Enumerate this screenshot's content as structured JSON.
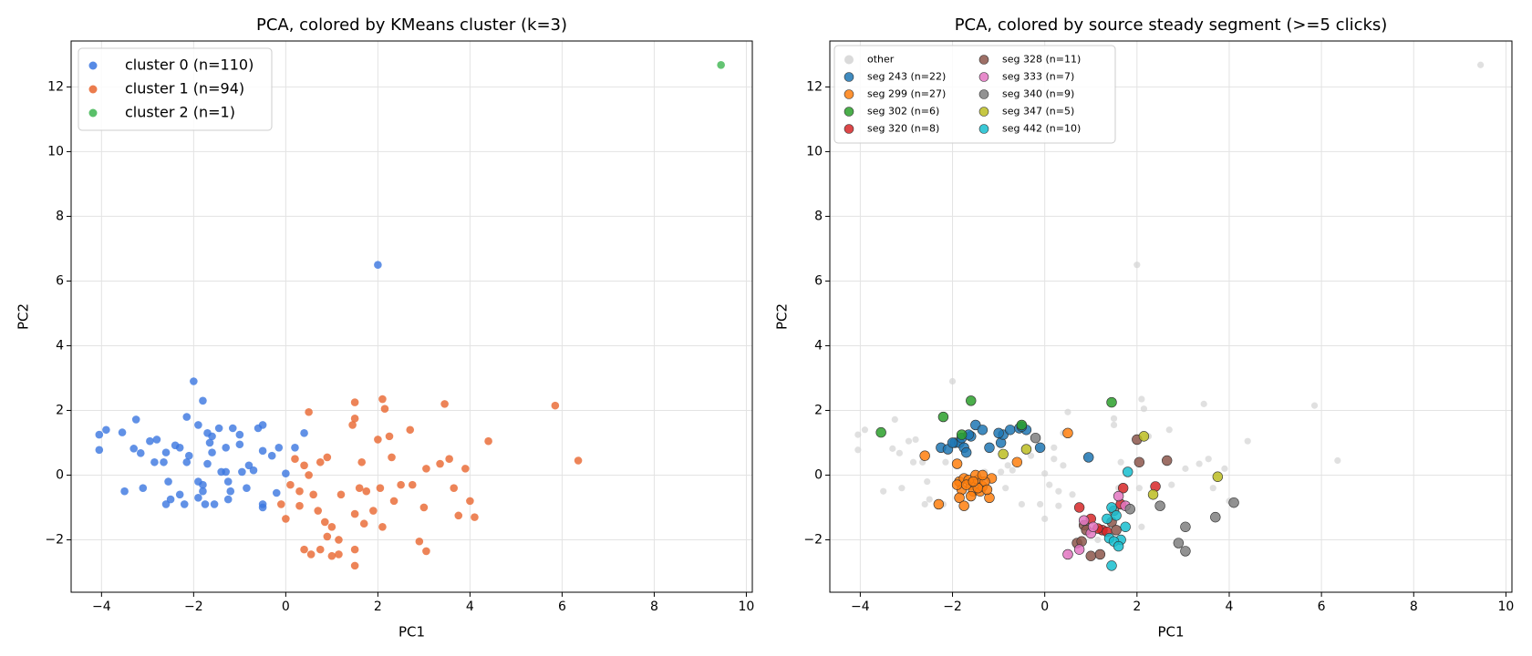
{
  "chart_data": [
    {
      "type": "scatter",
      "title": "PCA, colored by KMeans cluster (k=3)",
      "xlabel": "PC1",
      "ylabel": "PC2",
      "xlim": [
        -4.66,
        10.13
      ],
      "ylim": [
        -3.62,
        13.42
      ],
      "xticks": [
        {
          "value": -4,
          "label": "−4"
        },
        {
          "value": -2,
          "label": "−2"
        },
        0,
        2,
        4,
        6,
        8,
        10
      ],
      "yticks": [
        {
          "value": -2,
          "label": "−2"
        },
        0,
        2,
        4,
        6,
        8,
        10,
        12
      ],
      "grid": true,
      "legend": "upper left",
      "series": [
        {
          "name": "cluster 0 (n=110)",
          "color": "#3a76e0",
          "x": [
            -4.05,
            -3.9,
            -4.05,
            -3.55,
            -3.25,
            -3.3,
            -3.15,
            -2.95,
            -2.8,
            -3.5,
            -3.1,
            -2.85,
            -2.65,
            -2.6,
            -2.4,
            -2.3,
            -2.55,
            -2.3,
            -2.5,
            -2.6,
            -2.2,
            -2.15,
            -2.1,
            -2.0,
            -1.8,
            -2.15,
            -1.9,
            -1.8,
            -1.8,
            -1.9,
            -1.75,
            -1.55,
            -1.7,
            -1.6,
            -1.65,
            -1.7,
            -1.6,
            -1.45,
            -1.3,
            -1.3,
            -1.25,
            -1.2,
            -1.25,
            -1.15,
            -1.0,
            -1.0,
            -0.95,
            -0.85,
            -0.8,
            -0.7,
            -0.6,
            -0.5,
            -0.5,
            -0.5,
            -0.5,
            -0.3,
            -0.2,
            -0.15,
            0.0,
            0.2,
            0.4,
            -1.4,
            -1.9,
            2.0
          ],
          "y": [
            1.25,
            1.4,
            0.78,
            1.32,
            1.72,
            0.82,
            0.68,
            1.05,
            1.1,
            -0.5,
            -0.4,
            0.4,
            0.4,
            0.7,
            0.92,
            0.85,
            -0.2,
            -0.6,
            -0.75,
            -0.9,
            -0.9,
            0.4,
            0.6,
            2.9,
            2.3,
            1.8,
            -0.2,
            -0.3,
            -0.5,
            -0.7,
            -0.9,
            -0.9,
            0.35,
            0.7,
            1.0,
            1.3,
            1.2,
            1.45,
            0.85,
            0.1,
            -0.2,
            -0.5,
            -0.75,
            1.45,
            1.25,
            0.95,
            0.1,
            -0.4,
            0.3,
            0.15,
            1.45,
            1.55,
            0.75,
            -0.9,
            -1.0,
            0.6,
            -0.55,
            0.85,
            0.05,
            0.85,
            1.3,
            0.1,
            1.55,
            6.5
          ]
        },
        {
          "name": "cluster 1 (n=94)",
          "color": "#e8652e",
          "x": [
            0.5,
            0.2,
            0.4,
            0.5,
            0.1,
            0.3,
            -0.1,
            0.0,
            0.3,
            0.6,
            0.7,
            0.75,
            0.9,
            0.85,
            0.9,
            1.0,
            1.15,
            0.4,
            0.55,
            0.75,
            1.0,
            1.15,
            1.5,
            1.5,
            1.45,
            1.5,
            1.5,
            1.65,
            1.6,
            1.75,
            1.5,
            1.7,
            1.9,
            2.0,
            2.1,
            2.15,
            2.25,
            2.05,
            2.1,
            2.35,
            2.5,
            2.7,
            2.75,
            2.9,
            3.05,
            3.05,
            3.35,
            3.45,
            3.55,
            3.65,
            3.75,
            3.9,
            4.0,
            4.1,
            4.4,
            5.85,
            6.35,
            1.2,
            2.3,
            3.0
          ],
          "y": [
            1.95,
            0.5,
            0.3,
            0.0,
            -0.3,
            -0.5,
            -0.9,
            -1.35,
            -0.95,
            -0.6,
            -1.1,
            0.4,
            0.55,
            -1.45,
            -1.9,
            -1.6,
            -2.0,
            -2.3,
            -2.45,
            -2.3,
            -2.5,
            -2.45,
            -2.8,
            -2.3,
            1.55,
            1.75,
            2.25,
            0.4,
            -0.4,
            -0.5,
            -1.2,
            -1.5,
            -1.1,
            1.1,
            2.35,
            2.05,
            1.2,
            -0.4,
            -1.6,
            -0.8,
            -0.3,
            1.4,
            -0.3,
            -2.05,
            -2.35,
            0.2,
            0.35,
            2.2,
            0.5,
            -0.4,
            -1.25,
            0.2,
            -0.8,
            -1.3,
            1.05,
            2.15,
            0.45,
            -0.6,
            0.55,
            -1.0
          ]
        },
        {
          "name": "cluster 2 (n=1)",
          "color": "#3db550",
          "x": [
            9.45
          ],
          "y": [
            12.68
          ]
        }
      ]
    },
    {
      "type": "scatter",
      "title": "PCA, colored by source steady segment (>=5 clicks)",
      "xlabel": "PC1",
      "ylabel": "PC2",
      "xlim": [
        -4.66,
        10.13
      ],
      "ylim": [
        -3.62,
        13.42
      ],
      "xticks": [
        {
          "value": -4,
          "label": "−4"
        },
        {
          "value": -2,
          "label": "−2"
        },
        0,
        2,
        4,
        6,
        8,
        10
      ],
      "yticks": [
        {
          "value": -2,
          "label": "−2"
        },
        0,
        2,
        4,
        6,
        8,
        10,
        12
      ],
      "grid": true,
      "legend": "upper left",
      "series": [
        {
          "name": "other",
          "color": "#d3d3d3",
          "x": [
            -4.05,
            -3.9,
            -4.05,
            -3.25,
            -3.3,
            -3.15,
            -2.95,
            -2.8,
            -3.5,
            -3.1,
            -2.85,
            -2.65,
            -2.55,
            -2.5,
            -2.6,
            -2.2,
            -2.15,
            -2.0,
            -1.9,
            -1.3,
            -1.25,
            -0.95,
            -0.85,
            -0.8,
            -0.7,
            -0.5,
            -0.3,
            -0.15,
            0.0,
            0.2,
            0.4,
            2.0,
            0.5,
            0.2,
            0.4,
            0.1,
            0.3,
            -0.1,
            0.0,
            0.3,
            0.6,
            0.9,
            0.55,
            1.15,
            1.5,
            1.5,
            1.65,
            1.6,
            2.05,
            2.1,
            2.15,
            2.25,
            2.7,
            2.75,
            3.05,
            3.35,
            3.45,
            3.55,
            3.65,
            3.9,
            4.0,
            4.4,
            5.85,
            6.35,
            9.45,
            2.1
          ],
          "y": [
            1.25,
            1.4,
            0.78,
            1.72,
            0.82,
            0.68,
            1.05,
            1.1,
            -0.5,
            -0.4,
            0.4,
            0.4,
            -0.2,
            -0.75,
            -0.9,
            -0.9,
            0.4,
            2.9,
            -0.7,
            0.1,
            -0.2,
            0.1,
            -0.4,
            0.3,
            0.15,
            -0.9,
            0.6,
            0.85,
            0.05,
            0.85,
            1.3,
            6.5,
            1.95,
            0.5,
            0.3,
            -0.3,
            -0.5,
            -0.9,
            -1.35,
            -0.95,
            -0.6,
            0.55,
            -2.45,
            -2.0,
            1.55,
            1.75,
            0.4,
            -0.4,
            -0.4,
            2.35,
            2.05,
            1.2,
            1.4,
            -0.3,
            0.2,
            0.35,
            2.2,
            0.5,
            -0.4,
            0.2,
            -0.8,
            1.05,
            2.15,
            0.45,
            12.68,
            -1.6
          ]
        },
        {
          "name": "seg 243 (n=22)",
          "color": "#1f77b4",
          "x": [
            -2.25,
            -2.1,
            -1.95,
            -1.85,
            -1.75,
            -1.7,
            -1.6,
            -1.5,
            -1.35,
            -1.2,
            -0.95,
            -0.9,
            -0.75,
            -0.55,
            -0.4,
            -0.1,
            0.95,
            -2.0,
            -1.8,
            -1.0,
            -0.5,
            -1.65
          ],
          "y": [
            0.85,
            0.8,
            1.0,
            1.0,
            0.85,
            0.7,
            1.2,
            1.55,
            1.4,
            0.85,
            1.0,
            1.25,
            1.4,
            1.45,
            1.4,
            0.85,
            0.55,
            1.0,
            1.15,
            1.3,
            1.5,
            1.25
          ]
        },
        {
          "name": "seg 299 (n=27)",
          "color": "#ff7f0e",
          "x": [
            -2.6,
            -2.3,
            -1.9,
            -1.85,
            -1.75,
            -1.8,
            -1.85,
            -1.6,
            -1.55,
            -1.45,
            -1.4,
            -1.35,
            -1.2,
            -1.15,
            -1.75,
            -1.65,
            -1.5,
            -1.6,
            -1.3,
            -0.6,
            0.5,
            -1.9,
            -1.7,
            -1.45,
            -1.25,
            -1.55,
            -1.35
          ],
          "y": [
            0.6,
            -0.9,
            0.35,
            -0.2,
            -0.1,
            -0.45,
            -0.7,
            -0.3,
            -0.5,
            -0.15,
            -0.5,
            -0.35,
            -0.7,
            -0.1,
            -0.95,
            -0.15,
            0.0,
            -0.65,
            -0.2,
            0.4,
            1.3,
            -0.3,
            -0.3,
            -0.4,
            -0.45,
            -0.2,
            0.0
          ]
        },
        {
          "name": "seg 302 (n=6)",
          "color": "#2ca02c",
          "x": [
            -3.55,
            -2.2,
            -1.8,
            -1.6,
            -0.5,
            1.45
          ],
          "y": [
            1.32,
            1.8,
            1.25,
            2.3,
            1.55,
            2.25
          ]
        },
        {
          "name": "seg 320 (n=8)",
          "color": "#d62728",
          "x": [
            0.75,
            1.0,
            1.25,
            1.35,
            1.65,
            1.7,
            2.4,
            1.15
          ],
          "y": [
            -1.0,
            -1.35,
            -1.7,
            -1.75,
            -0.9,
            -0.4,
            -0.35,
            -1.65
          ]
        },
        {
          "name": "seg 328 (n=11)",
          "color": "#8c564b",
          "x": [
            0.7,
            0.85,
            0.9,
            1.0,
            1.2,
            1.45,
            1.55,
            2.0,
            2.05,
            2.65,
            0.8
          ],
          "y": [
            -2.1,
            -1.55,
            -1.7,
            -2.5,
            -2.45,
            -1.45,
            -1.7,
            1.1,
            0.4,
            0.45,
            -2.05
          ]
        },
        {
          "name": "seg 333 (n=7)",
          "color": "#e377c2",
          "x": [
            0.5,
            0.85,
            1.0,
            1.05,
            1.6,
            1.75,
            0.75
          ],
          "y": [
            -2.45,
            -1.4,
            -1.8,
            -1.6,
            -0.65,
            -0.95,
            -2.3
          ]
        },
        {
          "name": "seg 340 (n=9)",
          "color": "#7f7f7f",
          "x": [
            -0.2,
            1.5,
            2.5,
            2.9,
            3.05,
            3.05,
            3.7,
            4.1,
            1.85
          ],
          "y": [
            1.15,
            -1.1,
            -0.95,
            -2.1,
            -1.6,
            -2.35,
            -1.3,
            -0.85,
            -1.05
          ]
        },
        {
          "name": "seg 347 (n=5)",
          "color": "#bcbd22",
          "x": [
            -0.9,
            -0.4,
            2.15,
            2.35,
            3.75
          ],
          "y": [
            0.65,
            0.8,
            1.2,
            -0.6,
            -0.05
          ]
        },
        {
          "name": "seg 442 (n=10)",
          "color": "#17becf",
          "x": [
            1.45,
            1.55,
            1.65,
            1.75,
            1.8,
            1.4,
            1.5,
            1.45,
            1.35,
            1.6
          ],
          "y": [
            -1.0,
            -1.25,
            -2.0,
            -1.6,
            0.1,
            -1.95,
            -2.05,
            -2.8,
            -1.35,
            -2.2
          ]
        }
      ]
    }
  ]
}
